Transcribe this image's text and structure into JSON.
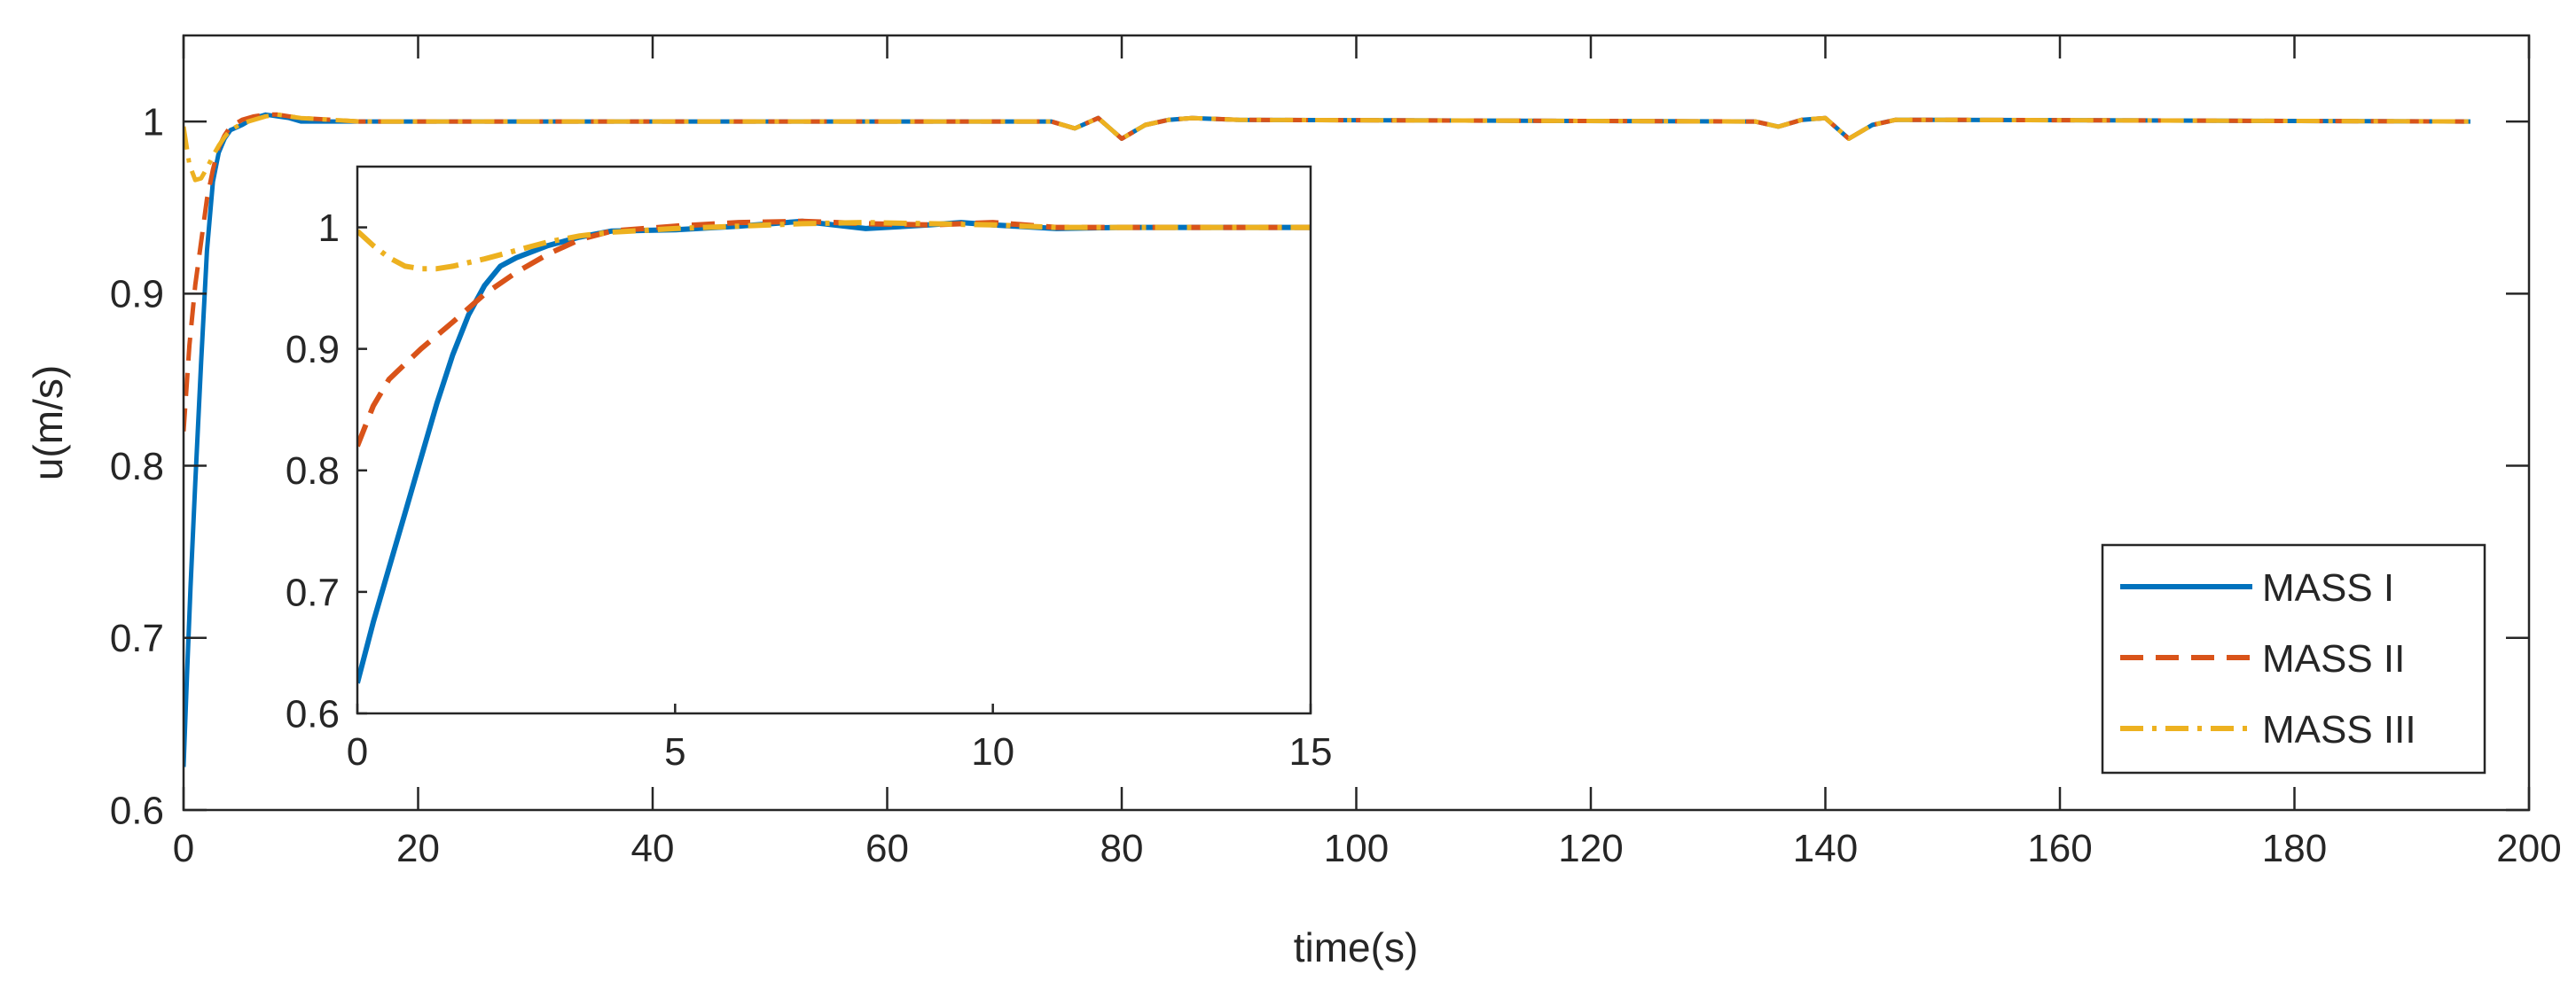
{
  "chart_data": [
    {
      "type": "line",
      "title": "",
      "xlabel": "time(s)",
      "ylabel": "u(m/s)",
      "xlim": [
        0,
        200
      ],
      "ylim": [
        0.6,
        1.05
      ],
      "xticks": [
        0,
        20,
        40,
        60,
        80,
        100,
        120,
        140,
        160,
        180,
        200
      ],
      "yticks": [
        0.6,
        0.7,
        0.8,
        0.9,
        1
      ],
      "grid": false,
      "legend_position": "bottom-right",
      "series": [
        {
          "name": "MASS I",
          "color": "#0072BD",
          "dash": "solid",
          "x": [
            0,
            0.3,
            0.6,
            1,
            1.5,
            2,
            2.5,
            3,
            3.5,
            4,
            5,
            6,
            7,
            8,
            9,
            10,
            15,
            74,
            76,
            78,
            80,
            82,
            84,
            86,
            90,
            134,
            136,
            138,
            140,
            142,
            144,
            146,
            150,
            195
          ],
          "y": [
            0.625,
            0.68,
            0.73,
            0.79,
            0.86,
            0.925,
            0.965,
            0.982,
            0.99,
            0.995,
            0.998,
            1.002,
            1.004,
            1.003,
            1.002,
            1.0,
            1.0,
            1.0,
            0.996,
            1.002,
            0.99,
            0.998,
            1.001,
            1.002,
            1.001,
            1.0,
            0.997,
            1.001,
            1.002,
            0.99,
            0.998,
            1.001,
            1.001,
            1.0
          ]
        },
        {
          "name": "MASS II",
          "color": "#D95319",
          "dash": "dashed",
          "x": [
            0,
            0.5,
            1,
            1.5,
            2,
            2.5,
            3,
            3.5,
            4,
            5,
            6,
            7,
            8,
            9,
            10,
            15,
            74,
            76,
            78,
            80,
            82,
            84,
            86,
            90,
            134,
            136,
            138,
            140,
            142,
            144,
            146,
            150,
            195
          ],
          "y": [
            0.82,
            0.87,
            0.905,
            0.93,
            0.955,
            0.972,
            0.985,
            0.992,
            0.997,
            1.001,
            1.003,
            1.004,
            1.004,
            1.003,
            1.002,
            1.0,
            1.0,
            0.996,
            1.002,
            0.99,
            0.998,
            1.001,
            1.002,
            1.001,
            1.0,
            0.997,
            1.001,
            1.002,
            0.99,
            0.998,
            1.001,
            1.001,
            1.0
          ]
        },
        {
          "name": "MASS III",
          "color": "#EDB120",
          "dash": "dashdot",
          "x": [
            0,
            0.5,
            1,
            1.5,
            2,
            2.5,
            3,
            3.5,
            4,
            5,
            6,
            7,
            8,
            9,
            10,
            15,
            74,
            76,
            78,
            80,
            82,
            84,
            86,
            90,
            134,
            136,
            138,
            140,
            142,
            144,
            146,
            150,
            195
          ],
          "y": [
            0.997,
            0.975,
            0.966,
            0.967,
            0.973,
            0.98,
            0.986,
            0.991,
            0.995,
            0.999,
            1.001,
            1.003,
            1.004,
            1.003,
            1.002,
            1.0,
            1.0,
            0.996,
            1.002,
            0.99,
            0.998,
            1.001,
            1.002,
            1.001,
            1.0,
            0.997,
            1.001,
            1.002,
            0.99,
            0.998,
            1.001,
            1.001,
            1.0
          ]
        }
      ]
    },
    {
      "type": "line",
      "title": "",
      "xlabel": "",
      "ylabel": "",
      "xlim": [
        0,
        15
      ],
      "ylim": [
        0.6,
        1.05
      ],
      "xticks": [
        0,
        5,
        10,
        15
      ],
      "yticks": [
        0.6,
        0.7,
        0.8,
        0.9,
        1
      ],
      "grid": false,
      "series": [
        {
          "color": "#0072BD",
          "dash": "solid",
          "x": [
            0,
            0.25,
            0.5,
            0.75,
            1,
            1.25,
            1.5,
            1.75,
            2,
            2.25,
            2.5,
            3,
            3.5,
            4,
            5,
            6,
            7,
            8,
            9,
            9.5,
            10,
            11,
            12,
            15
          ],
          "y": [
            0.625,
            0.675,
            0.72,
            0.765,
            0.81,
            0.855,
            0.895,
            0.928,
            0.952,
            0.968,
            0.975,
            0.985,
            0.992,
            0.997,
            0.998,
            1.001,
            1.005,
            0.999,
            1.002,
            1.004,
            1.002,
            0.999,
            1.0,
            1.0
          ]
        },
        {
          "color": "#D95319",
          "dash": "dashed",
          "x": [
            0,
            0.25,
            0.5,
            1,
            1.5,
            2,
            2.5,
            3,
            3.5,
            4,
            5,
            6,
            7,
            8,
            9,
            10,
            11,
            12,
            15
          ],
          "y": [
            0.82,
            0.853,
            0.875,
            0.9,
            0.922,
            0.945,
            0.963,
            0.978,
            0.99,
            0.997,
            1.001,
            1.004,
            1.005,
            1.003,
            1.002,
            1.004,
            1.0,
            1.0,
            1.0
          ]
        },
        {
          "color": "#EDB120",
          "dash": "dashdot",
          "x": [
            0,
            0.25,
            0.5,
            0.75,
            1,
            1.25,
            1.5,
            2,
            2.5,
            3,
            3.5,
            4,
            5,
            6,
            7,
            8,
            9,
            10,
            11,
            12,
            15
          ],
          "y": [
            0.997,
            0.985,
            0.975,
            0.968,
            0.966,
            0.966,
            0.968,
            0.974,
            0.981,
            0.988,
            0.993,
            0.996,
            0.999,
            1.001,
            1.003,
            1.004,
            1.003,
            1.002,
            1.0,
            1.0,
            1.0
          ]
        }
      ]
    }
  ]
}
